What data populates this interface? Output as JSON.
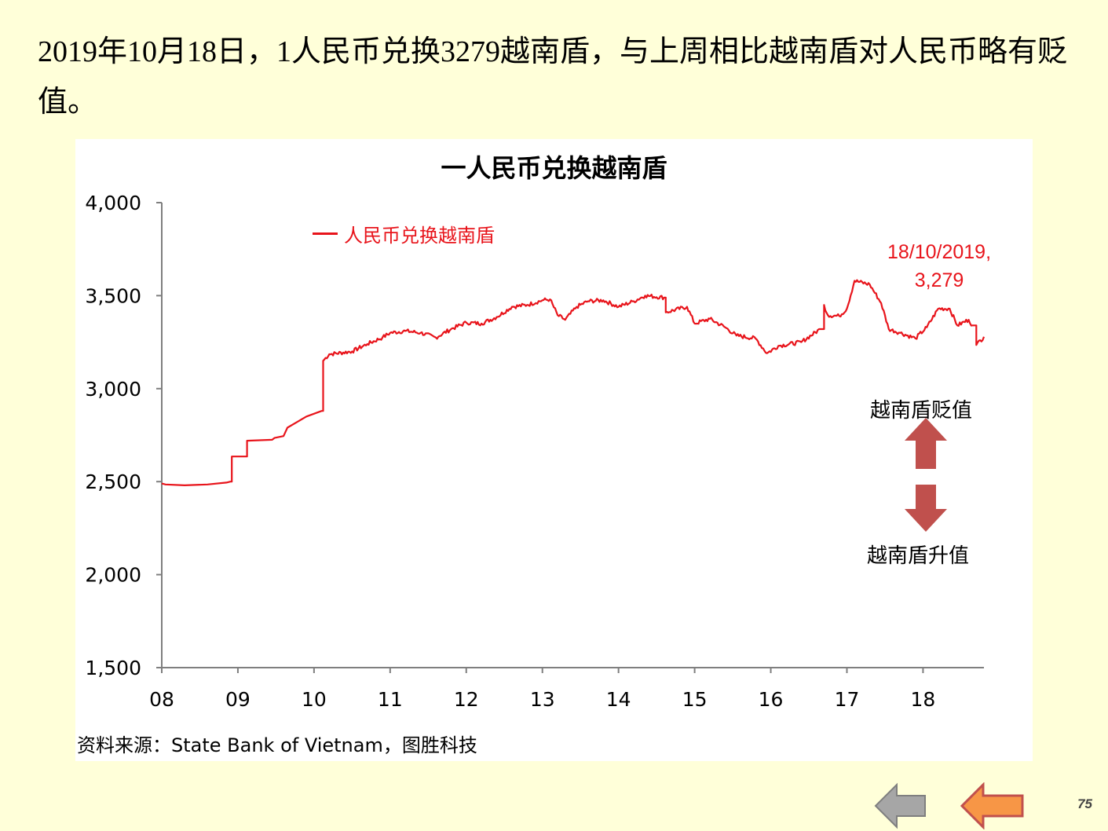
{
  "headline": "2019年10月18日，1人民币兑换3279越南盾，与上周相比越南盾对人民币略有贬值。",
  "source": "资料来源：State Bank of Vietnam，图胜科技",
  "page_number": "75",
  "labels": {
    "depreciation": "越南盾贬值",
    "appreciation": "越南盾升值",
    "annotation_line1": "18/10/2019,",
    "annotation_line2": "3,279"
  },
  "colors": {
    "line": "#e8141b",
    "arrow": "#c0504d",
    "prev_button": "#a6a6a6",
    "next_button": "#f79646",
    "background": "#ffffd9"
  },
  "nav": {
    "prev_icon": "left-arrow-gray",
    "next_icon": "left-arrow-orange"
  },
  "chart_data": {
    "type": "line",
    "title": "一人民币兑换越南盾",
    "legend_position": "top-left",
    "grid": false,
    "xlabel": "",
    "ylabel": "",
    "ylim": [
      1500,
      4000
    ],
    "yticks": [
      "4,000",
      "3,500",
      "3,000",
      "2,500",
      "2,000",
      "1,500"
    ],
    "ytick_values": [
      4000,
      3500,
      3000,
      2500,
      2000,
      1500
    ],
    "xlim": [
      2008.0,
      2018.8
    ],
    "xticks": [
      "08",
      "09",
      "10",
      "11",
      "12",
      "13",
      "14",
      "15",
      "16",
      "17",
      "18"
    ],
    "xtick_values": [
      2008,
      2009,
      2010,
      2011,
      2012,
      2013,
      2014,
      2015,
      2016,
      2017,
      2018
    ],
    "series": [
      {
        "name": "人民币兑换越南盾",
        "x": [
          2008.0,
          2008.05,
          2008.3,
          2008.6,
          2008.85,
          2008.9,
          2008.92,
          2009.1,
          2009.12,
          2009.45,
          2009.48,
          2009.6,
          2009.65,
          2009.9,
          2010.1,
          2010.12,
          2010.2,
          2010.5,
          2010.7,
          2010.9,
          2011.0,
          2011.2,
          2011.4,
          2011.6,
          2011.8,
          2012.0,
          2012.2,
          2012.4,
          2012.6,
          2012.8,
          2013.0,
          2013.1,
          2013.2,
          2013.3,
          2013.45,
          2013.6,
          2013.8,
          2014.0,
          2014.2,
          2014.35,
          2014.6,
          2014.62,
          2014.9,
          2015.0,
          2015.2,
          2015.4,
          2015.55,
          2015.8,
          2015.95,
          2016.1,
          2016.4,
          2016.65,
          2016.7,
          2016.75,
          2016.9,
          2017.0,
          2017.1,
          2017.3,
          2017.45,
          2017.55,
          2017.7,
          2017.9,
          2018.05,
          2018.2,
          2018.35,
          2018.45,
          2018.6,
          2018.65,
          2018.7,
          2018.8
        ],
        "values": [
          2490,
          2485,
          2480,
          2485,
          2495,
          2500,
          2635,
          2635,
          2720,
          2725,
          2735,
          2745,
          2790,
          2850,
          2880,
          3150,
          3185,
          3200,
          3240,
          3275,
          3300,
          3310,
          3300,
          3275,
          3320,
          3355,
          3350,
          3385,
          3440,
          3450,
          3475,
          3480,
          3395,
          3370,
          3440,
          3470,
          3475,
          3440,
          3470,
          3500,
          3490,
          3410,
          3440,
          3350,
          3375,
          3330,
          3285,
          3270,
          3190,
          3230,
          3250,
          3320,
          3450,
          3395,
          3390,
          3430,
          3580,
          3560,
          3460,
          3320,
          3300,
          3270,
          3330,
          3430,
          3430,
          3340,
          3370,
          3340,
          3235,
          3279
        ]
      }
    ]
  }
}
